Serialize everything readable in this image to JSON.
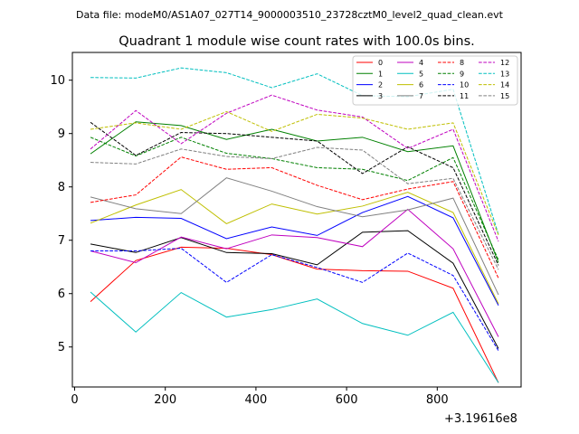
{
  "suptitle": "Data file: modeM0/AS1A07_027T14_9000003510_23728cztM0_level2_quad_clean.evt",
  "chart_data": {
    "type": "line",
    "title": "Quadrant 1 module wise count rates with 100.0s bins.",
    "xlabel": "",
    "ylabel": "",
    "x_offset_label": "+3.19616e8",
    "xlim": [
      -5,
      985
    ],
    "ylim": [
      4.25,
      10.52
    ],
    "x_ticks": [
      0,
      200,
      400,
      600,
      800
    ],
    "x_tick_labels": [
      "0",
      "200",
      "400",
      "600",
      "800"
    ],
    "y_ticks": [
      5,
      6,
      7,
      8,
      9,
      10
    ],
    "y_tick_labels": [
      "5",
      "6",
      "7",
      "8",
      "9",
      "10"
    ],
    "grid": false,
    "legend_position": "top-right",
    "x": [
      35,
      135,
      235,
      335,
      435,
      535,
      635,
      735,
      835,
      935
    ],
    "series": [
      {
        "name": "0",
        "color": "#ff0000",
        "dash": "solid",
        "values": [
          5.85,
          6.62,
          6.87,
          6.85,
          6.73,
          6.46,
          6.43,
          6.42,
          6.1,
          4.33
        ]
      },
      {
        "name": "1",
        "color": "#008000",
        "dash": "solid",
        "values": [
          8.62,
          9.22,
          9.15,
          8.89,
          9.08,
          8.86,
          8.93,
          8.66,
          8.77,
          6.58
        ]
      },
      {
        "name": "2",
        "color": "#0000ff",
        "dash": "solid",
        "values": [
          7.37,
          7.43,
          7.41,
          7.03,
          7.25,
          7.09,
          7.52,
          7.82,
          7.42,
          5.78
        ]
      },
      {
        "name": "3",
        "color": "#000000",
        "dash": "solid",
        "values": [
          6.93,
          6.77,
          7.05,
          6.77,
          6.75,
          6.54,
          7.15,
          7.18,
          6.57,
          4.97
        ]
      },
      {
        "name": "4",
        "color": "#bf00bf",
        "dash": "solid",
        "values": [
          6.8,
          6.58,
          7.06,
          6.84,
          7.1,
          7.05,
          6.88,
          7.58,
          6.84,
          5.19
        ]
      },
      {
        "name": "5",
        "color": "#00bfbf",
        "dash": "solid",
        "values": [
          6.03,
          5.28,
          6.02,
          5.56,
          5.7,
          5.9,
          5.44,
          5.22,
          5.65,
          4.33
        ]
      },
      {
        "name": "6",
        "color": "#bfbf00",
        "dash": "solid",
        "values": [
          7.32,
          7.66,
          7.95,
          7.31,
          7.68,
          7.49,
          7.64,
          7.9,
          7.52,
          5.81
        ]
      },
      {
        "name": "7",
        "color": "#808080",
        "dash": "solid",
        "values": [
          7.81,
          7.59,
          7.5,
          8.17,
          7.92,
          7.63,
          7.44,
          7.57,
          7.79,
          5.98
        ]
      },
      {
        "name": "8",
        "color": "#ff0000",
        "dash": "dashed",
        "values": [
          7.71,
          7.85,
          8.56,
          8.33,
          8.36,
          8.03,
          7.76,
          7.96,
          8.1,
          6.29
        ]
      },
      {
        "name": "9",
        "color": "#008000",
        "dash": "dashed",
        "values": [
          8.93,
          8.58,
          8.93,
          8.63,
          8.53,
          8.36,
          8.33,
          8.12,
          8.55,
          6.63
        ]
      },
      {
        "name": "10",
        "color": "#0000ff",
        "dash": "dashed",
        "values": [
          6.8,
          6.8,
          6.85,
          6.21,
          6.73,
          6.49,
          6.21,
          6.76,
          6.34,
          4.93
        ]
      },
      {
        "name": "11",
        "color": "#000000",
        "dash": "dashed",
        "values": [
          9.21,
          8.59,
          9.02,
          9.0,
          8.93,
          8.86,
          8.25,
          8.75,
          8.36,
          6.53
        ]
      },
      {
        "name": "12",
        "color": "#bf00bf",
        "dash": "dashed",
        "values": [
          8.71,
          9.43,
          8.81,
          9.38,
          9.72,
          9.44,
          9.31,
          8.72,
          9.08,
          6.98
        ]
      },
      {
        "name": "13",
        "color": "#00bfbf",
        "dash": "dashed",
        "values": [
          10.05,
          10.04,
          10.23,
          10.14,
          9.86,
          10.12,
          9.71,
          9.69,
          9.83,
          7.11
        ]
      },
      {
        "name": "14",
        "color": "#bfbf00",
        "dash": "dashed",
        "values": [
          9.08,
          9.2,
          9.08,
          9.41,
          9.04,
          9.36,
          9.29,
          9.08,
          9.2,
          7.1
        ]
      },
      {
        "name": "15",
        "color": "#808080",
        "dash": "dashed",
        "values": [
          8.46,
          8.43,
          8.71,
          8.57,
          8.53,
          8.74,
          8.69,
          8.06,
          8.16,
          6.45
        ]
      }
    ]
  }
}
